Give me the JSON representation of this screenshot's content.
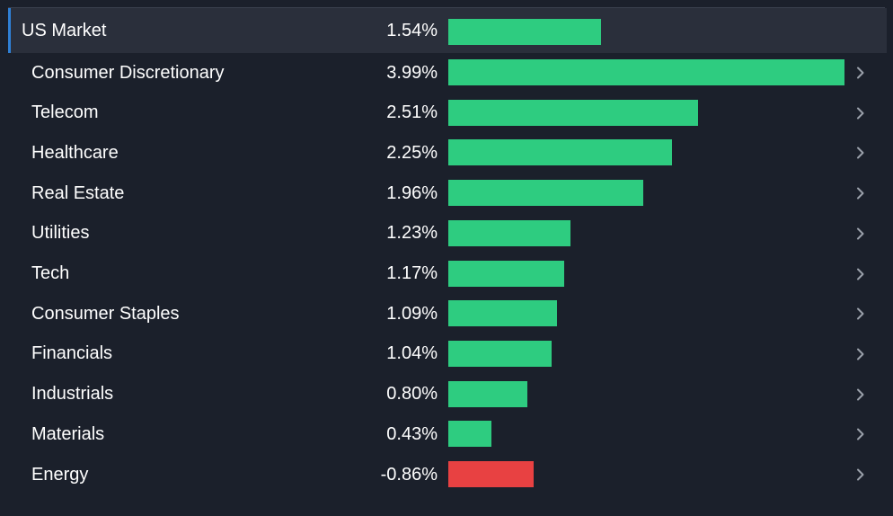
{
  "colors": {
    "background": "#1b202b",
    "highlight_row": "#2a2f3b",
    "accent": "#2f80d6",
    "positive": "#2ecc80",
    "negative": "#e84142",
    "chevron": "#9aa0aa"
  },
  "market": {
    "name": "US Market",
    "change": "1.54%",
    "value": 1.54
  },
  "sectors": [
    {
      "name": "Consumer Discretionary",
      "change": "3.99%",
      "value": 3.99
    },
    {
      "name": "Telecom",
      "change": "2.51%",
      "value": 2.51
    },
    {
      "name": "Healthcare",
      "change": "2.25%",
      "value": 2.25
    },
    {
      "name": "Real Estate",
      "change": "1.96%",
      "value": 1.96
    },
    {
      "name": "Utilities",
      "change": "1.23%",
      "value": 1.23
    },
    {
      "name": "Tech",
      "change": "1.17%",
      "value": 1.17
    },
    {
      "name": "Consumer Staples",
      "change": "1.09%",
      "value": 1.09
    },
    {
      "name": "Financials",
      "change": "1.04%",
      "value": 1.04
    },
    {
      "name": "Industrials",
      "change": "0.80%",
      "value": 0.8
    },
    {
      "name": "Materials",
      "change": "0.43%",
      "value": 0.43
    },
    {
      "name": "Energy",
      "change": "-0.86%",
      "value": -0.86
    }
  ],
  "icons": {
    "row_chevron": "chevron-right-icon"
  }
}
